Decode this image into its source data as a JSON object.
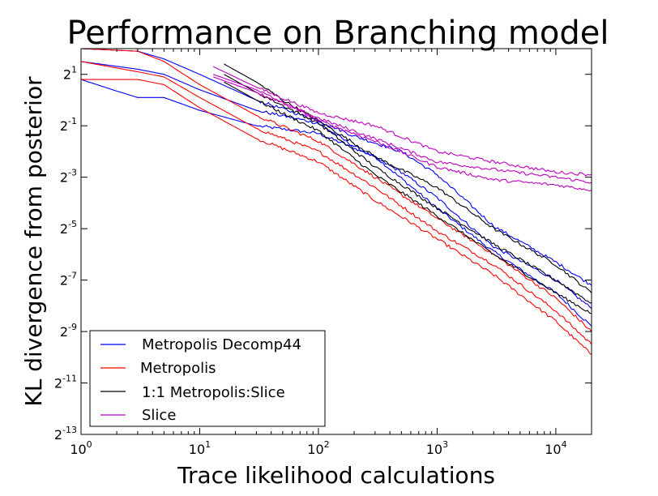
{
  "chart_data": {
    "type": "line",
    "title": "Performance on Branching model",
    "xlabel": "Trace likelihood calculations",
    "ylabel": "KL divergence from posterior",
    "x_scale": "log10",
    "y_scale": "log2",
    "xlim": [
      1,
      20000
    ],
    "ylim_exponent": [
      -13,
      2
    ],
    "x_ticks": [
      {
        "value": 1,
        "base": "10",
        "exp": "0"
      },
      {
        "value": 10,
        "base": "10",
        "exp": "1"
      },
      {
        "value": 100,
        "base": "10",
        "exp": "2"
      },
      {
        "value": 1000,
        "base": "10",
        "exp": "3"
      },
      {
        "value": 10000,
        "base": "10",
        "exp": "4"
      }
    ],
    "y_ticks": [
      {
        "value": 1,
        "base": "2",
        "exp": "1"
      },
      {
        "value": -1,
        "base": "2",
        "exp": "-1"
      },
      {
        "value": -3,
        "base": "2",
        "exp": "-3"
      },
      {
        "value": -5,
        "base": "2",
        "exp": "-5"
      },
      {
        "value": -7,
        "base": "2",
        "exp": "-7"
      },
      {
        "value": -9,
        "base": "2",
        "exp": "-9"
      },
      {
        "value": -11,
        "base": "2",
        "exp": "-11"
      },
      {
        "value": -13,
        "base": "2",
        "exp": "-13"
      }
    ],
    "legend_position": "lower-left",
    "grid": false,
    "series": [
      {
        "name": "Metropolis Decomp44",
        "color": "#0000ff",
        "lines": [
          [
            [
              1,
              0.8
            ],
            [
              2,
              0.35
            ],
            [
              3,
              0.1
            ],
            [
              5,
              0.1
            ],
            [
              10,
              -0.4
            ],
            [
              30,
              -1.0
            ],
            [
              100,
              -1.3
            ],
            [
              300,
              -2.2
            ],
            [
              1000,
              -4.2
            ],
            [
              3000,
              -5.9
            ],
            [
              10000,
              -7.5
            ],
            [
              20000,
              -8.8
            ]
          ],
          [
            [
              1,
              1.5
            ],
            [
              3,
              1.2
            ],
            [
              5,
              1.0
            ],
            [
              10,
              0.4
            ],
            [
              30,
              -0.4
            ],
            [
              100,
              -0.9
            ],
            [
              200,
              -1.8
            ],
            [
              500,
              -2.8
            ],
            [
              1000,
              -3.8
            ],
            [
              3000,
              -5.7
            ],
            [
              10000,
              -7.0
            ],
            [
              20000,
              -8.1
            ]
          ],
          [
            [
              1,
              2.0
            ],
            [
              3,
              1.9
            ],
            [
              5,
              1.6
            ],
            [
              10,
              1.0
            ],
            [
              30,
              0.0
            ],
            [
              100,
              -0.8
            ],
            [
              200,
              -1.4
            ],
            [
              500,
              -2.0
            ],
            [
              1000,
              -2.9
            ],
            [
              3000,
              -4.9
            ],
            [
              10000,
              -6.3
            ],
            [
              20000,
              -7.2
            ]
          ]
        ]
      },
      {
        "name": "Metropolis",
        "color": "#ff0000",
        "lines": [
          [
            [
              1,
              0.8
            ],
            [
              3,
              0.8
            ],
            [
              5,
              0.6
            ],
            [
              10,
              -0.3
            ],
            [
              30,
              -1.5
            ],
            [
              100,
              -2.4
            ],
            [
              300,
              -3.9
            ],
            [
              1000,
              -5.4
            ],
            [
              3000,
              -6.8
            ],
            [
              10000,
              -8.6
            ],
            [
              20000,
              -9.9
            ]
          ],
          [
            [
              1,
              1.5
            ],
            [
              3,
              1.1
            ],
            [
              5,
              0.9
            ],
            [
              10,
              0.1
            ],
            [
              30,
              -1.1
            ],
            [
              100,
              -2.0
            ],
            [
              300,
              -3.4
            ],
            [
              1000,
              -5.1
            ],
            [
              3000,
              -6.4
            ],
            [
              10000,
              -8.2
            ],
            [
              20000,
              -9.5
            ]
          ],
          [
            [
              1,
              2.0
            ],
            [
              3,
              1.9
            ],
            [
              5,
              1.5
            ],
            [
              10,
              0.6
            ],
            [
              30,
              -0.6
            ],
            [
              100,
              -1.6
            ],
            [
              300,
              -3.0
            ],
            [
              1000,
              -4.6
            ],
            [
              3000,
              -6.0
            ],
            [
              10000,
              -7.7
            ],
            [
              20000,
              -9.0
            ]
          ]
        ]
      },
      {
        "name": "1:1 Metropolis:Slice",
        "color": "#000000",
        "lines": [
          [
            [
              16,
              1.4
            ],
            [
              30,
              0.7
            ],
            [
              50,
              0.0
            ],
            [
              100,
              -0.8
            ],
            [
              300,
              -2.2
            ],
            [
              1000,
              -3.4
            ],
            [
              3000,
              -5.0
            ],
            [
              10000,
              -6.4
            ],
            [
              20000,
              -7.5
            ]
          ],
          [
            [
              16,
              1.0
            ],
            [
              30,
              0.3
            ],
            [
              100,
              -0.9
            ],
            [
              300,
              -2.6
            ],
            [
              1000,
              -4.2
            ],
            [
              3000,
              -5.6
            ],
            [
              10000,
              -7.0
            ],
            [
              20000,
              -7.9
            ]
          ],
          [
            [
              16,
              0.7
            ],
            [
              30,
              0.0
            ],
            [
              100,
              -1.2
            ],
            [
              300,
              -2.9
            ],
            [
              1000,
              -4.5
            ],
            [
              3000,
              -6.0
            ],
            [
              10000,
              -7.5
            ],
            [
              20000,
              -8.3
            ]
          ]
        ]
      },
      {
        "name": "Slice",
        "color": "#bf00bf",
        "lines": [
          [
            [
              13,
              1.3
            ],
            [
              30,
              0.5
            ],
            [
              100,
              -0.5
            ],
            [
              300,
              -1.0
            ],
            [
              1000,
              -2.0
            ],
            [
              3000,
              -2.4
            ],
            [
              10000,
              -2.8
            ],
            [
              20000,
              -2.9
            ]
          ],
          [
            [
              13,
              0.9
            ],
            [
              30,
              0.3
            ],
            [
              100,
              -0.7
            ],
            [
              300,
              -1.5
            ],
            [
              1000,
              -2.4
            ],
            [
              3000,
              -2.7
            ],
            [
              10000,
              -3.0
            ],
            [
              20000,
              -3.2
            ]
          ],
          [
            [
              13,
              1.0
            ],
            [
              30,
              0.4
            ],
            [
              100,
              -0.8
            ],
            [
              300,
              -1.6
            ],
            [
              1000,
              -2.6
            ],
            [
              3000,
              -3.1
            ],
            [
              10000,
              -3.3
            ],
            [
              20000,
              -3.5
            ]
          ]
        ]
      }
    ]
  }
}
